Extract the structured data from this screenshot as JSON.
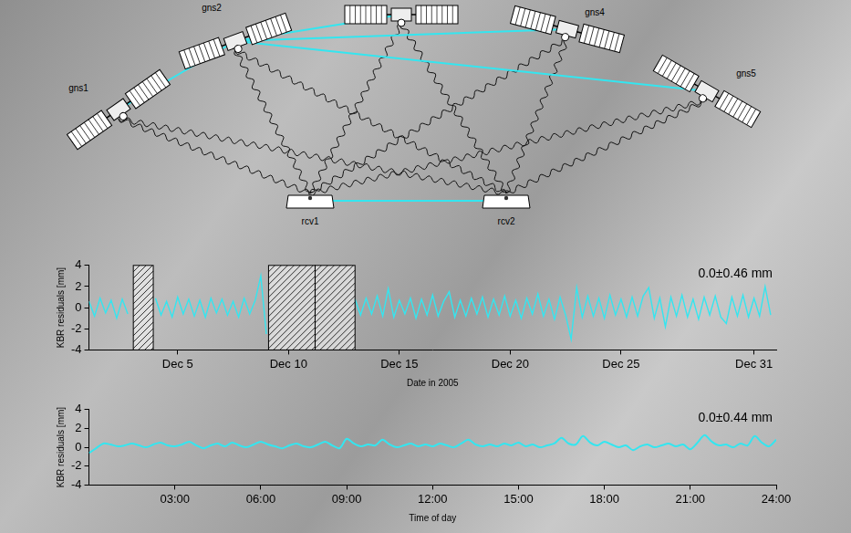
{
  "diagram": {
    "satellites": [
      "gns1",
      "gns2",
      "gns4",
      "gns5"
    ],
    "receivers": [
      "rcv1",
      "rcv2"
    ]
  },
  "chart_data": [
    {
      "type": "line",
      "x_label": "Date in 2005",
      "y_label": "KBR residuals [mm]",
      "annotation": "0.0±0.46 mm",
      "xlim": [
        1,
        32
      ],
      "xticks": [
        {
          "value": 5,
          "label": "Dec 5"
        },
        {
          "value": 10,
          "label": "Dec 10"
        },
        {
          "value": 15,
          "label": "Dec 15"
        },
        {
          "value": 20,
          "label": "Dec 20"
        },
        {
          "value": 25,
          "label": "Dec 25"
        },
        {
          "value": 31,
          "label": "Dec 31"
        }
      ],
      "ylim": [
        -4,
        4
      ],
      "yticks": [
        -4,
        -2,
        0,
        2,
        4
      ],
      "grid": false,
      "gaps": [
        [
          3.0,
          3.9
        ],
        [
          9.1,
          11.2
        ],
        [
          11.2,
          13.0
        ]
      ],
      "x": [
        1,
        1.25,
        1.5,
        1.75,
        2,
        2.25,
        2.5,
        2.75,
        3,
        3.25,
        3.5,
        3.75,
        4,
        4.25,
        4.5,
        4.75,
        5,
        5.25,
        5.5,
        5.75,
        6,
        6.25,
        6.5,
        6.75,
        7,
        7.25,
        7.5,
        7.75,
        8,
        8.25,
        8.5,
        8.75,
        9,
        9.25,
        9.5,
        9.75,
        10,
        10.25,
        10.5,
        10.75,
        11,
        11.25,
        11.5,
        11.75,
        12,
        12.25,
        12.5,
        12.75,
        13,
        13.25,
        13.5,
        13.75,
        14,
        14.25,
        14.5,
        14.75,
        15,
        15.25,
        15.5,
        15.75,
        16,
        16.25,
        16.5,
        16.75,
        17,
        17.25,
        17.5,
        17.75,
        18,
        18.25,
        18.5,
        18.75,
        19,
        19.25,
        19.5,
        19.75,
        20,
        20.25,
        20.5,
        20.75,
        21,
        21.25,
        21.5,
        21.75,
        22,
        22.25,
        22.5,
        22.75,
        23,
        23.25,
        23.5,
        23.75,
        24,
        24.25,
        24.5,
        24.75,
        25,
        25.25,
        25.5,
        25.75,
        26,
        26.25,
        26.5,
        26.75,
        27,
        27.25,
        27.5,
        27.75,
        28,
        28.25,
        28.5,
        28.75,
        29,
        29.25,
        29.5,
        29.75,
        30,
        30.25,
        30.5,
        30.75,
        31,
        31.25,
        31.5,
        31.75
      ],
      "series": [
        {
          "name": "KBR residuals",
          "color": "#33e6f0",
          "values": [
            0.6,
            -0.8,
            0.9,
            -0.5,
            0.7,
            -1.0,
            0.8,
            -0.6,
            null,
            null,
            null,
            null,
            0.9,
            -0.7,
            0.6,
            -0.9,
            1.0,
            -0.6,
            0.8,
            -0.8,
            0.7,
            -0.9,
            0.9,
            -0.5,
            0.8,
            -0.7,
            0.6,
            -0.9,
            0.9,
            -0.6,
            0.7,
            3.0,
            -2.5,
            null,
            null,
            null,
            null,
            null,
            null,
            null,
            null,
            null,
            null,
            null,
            null,
            null,
            null,
            null,
            0.8,
            -0.7,
            0.9,
            -0.6,
            1.1,
            -0.8,
            1.8,
            -0.9,
            0.7,
            -0.6,
            0.9,
            -1.0,
            0.8,
            -0.7,
            1.2,
            -0.8,
            0.6,
            1.5,
            -0.9,
            0.7,
            -0.8,
            0.9,
            -0.6,
            1.0,
            -0.9,
            0.8,
            -0.7,
            1.1,
            -0.8,
            0.7,
            -1.0,
            0.9,
            -0.6,
            1.3,
            -0.8,
            0.8,
            -1.1,
            1.0,
            -0.7,
            -3.0,
            1.9,
            -0.9,
            1.1,
            -0.8,
            0.9,
            -1.0,
            1.2,
            -0.7,
            0.8,
            -0.9,
            1.0,
            -0.8,
            1.1,
            1.9,
            -1.0,
            0.9,
            -1.8,
            1.0,
            -0.8,
            1.2,
            -0.9,
            0.8,
            -1.1,
            1.0,
            -0.7,
            1.1,
            -0.9,
            -1.5,
            1.0,
            -0.8,
            1.2,
            -0.9,
            0.9,
            -0.8,
            2.0,
            -0.7
          ]
        }
      ]
    },
    {
      "type": "line",
      "x_label": "Time of day",
      "y_label": "KBR residuals [mm]",
      "annotation": "0.0±0.44 mm",
      "xlim": [
        0,
        24
      ],
      "xticks": [
        {
          "value": 3,
          "label": "03:00"
        },
        {
          "value": 6,
          "label": "06:00"
        },
        {
          "value": 9,
          "label": "09:00"
        },
        {
          "value": 12,
          "label": "12:00"
        },
        {
          "value": 15,
          "label": "15:00"
        },
        {
          "value": 18,
          "label": "18:00"
        },
        {
          "value": 21,
          "label": "21:00"
        },
        {
          "value": 24,
          "label": "24:00"
        }
      ],
      "ylim": [
        -4,
        4
      ],
      "yticks": [
        -4,
        -2,
        0,
        2,
        4
      ],
      "grid": false,
      "x": [
        0,
        0.25,
        0.5,
        0.75,
        1,
        1.25,
        1.5,
        1.75,
        2,
        2.25,
        2.5,
        2.75,
        3,
        3.25,
        3.5,
        3.75,
        4,
        4.25,
        4.5,
        4.75,
        5,
        5.25,
        5.5,
        5.75,
        6,
        6.25,
        6.5,
        6.75,
        7,
        7.25,
        7.5,
        7.75,
        8,
        8.25,
        8.5,
        8.75,
        9,
        9.25,
        9.5,
        9.75,
        10,
        10.25,
        10.5,
        10.75,
        11,
        11.25,
        11.5,
        11.75,
        12,
        12.25,
        12.5,
        12.75,
        13,
        13.25,
        13.5,
        13.75,
        14,
        14.25,
        14.5,
        14.75,
        15,
        15.25,
        15.5,
        15.75,
        16,
        16.25,
        16.5,
        16.75,
        17,
        17.25,
        17.5,
        17.75,
        18,
        18.25,
        18.5,
        18.75,
        19,
        19.25,
        19.5,
        19.75,
        20,
        20.25,
        20.5,
        20.75,
        21,
        21.25,
        21.5,
        21.75,
        22,
        22.25,
        22.5,
        22.75,
        23,
        23.25,
        23.5,
        23.75,
        24
      ],
      "series": [
        {
          "name": "KBR residuals",
          "color": "#33e6f0",
          "values": [
            -0.6,
            -0.1,
            0.4,
            0.3,
            0.1,
            0.2,
            0.4,
            0.2,
            0.0,
            0.3,
            0.5,
            0.2,
            0.1,
            0.3,
            0.6,
            0.2,
            -0.1,
            0.2,
            0.4,
            0.1,
            0.5,
            0.2,
            0.0,
            0.3,
            0.6,
            0.3,
            0.1,
            -0.1,
            0.2,
            0.4,
            0.1,
            0.0,
            0.3,
            0.6,
            0.2,
            -0.1,
            0.9,
            0.4,
            0.1,
            0.3,
            0.2,
            0.8,
            0.3,
            0.0,
            0.2,
            0.4,
            0.1,
            0.3,
            0.1,
            0.4,
            0.2,
            0.0,
            0.4,
            0.8,
            0.3,
            0.1,
            0.3,
            0.1,
            0.4,
            0.2,
            0.5,
            0.1,
            0.3,
            0.0,
            0.2,
            0.4,
            1.0,
            0.4,
            0.3,
            1.2,
            0.5,
            0.2,
            0.6,
            0.3,
            0.0,
            0.2,
            -0.3,
            0.1,
            0.3,
            0.0,
            0.2,
            0.4,
            0.1,
            0.3,
            -0.2,
            0.5,
            1.3,
            0.6,
            0.2,
            0.3,
            0.0,
            0.4,
            0.2,
            1.2,
            0.5,
            0.1,
            0.8
          ]
        }
      ]
    }
  ]
}
